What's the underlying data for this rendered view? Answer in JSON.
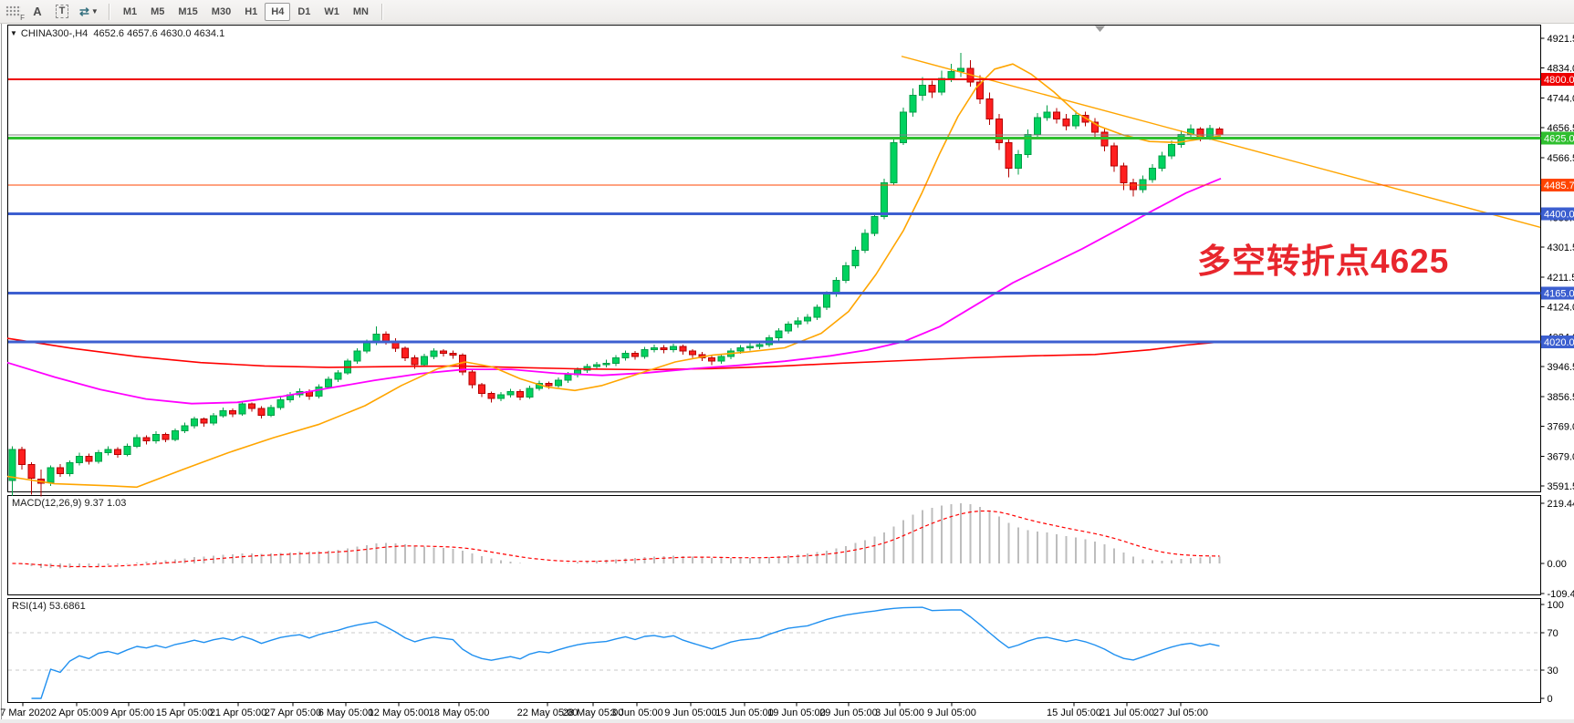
{
  "toolbar": {
    "icons": {
      "f_label": "F",
      "text_label": "A",
      "text_box": "T",
      "arrows": "⇄",
      "caret": "▼",
      "symbol_marker": "▼"
    },
    "timeframes": [
      "M1",
      "M5",
      "M15",
      "M30",
      "H1",
      "H4",
      "D1",
      "W1",
      "MN"
    ],
    "active_timeframe": "H4"
  },
  "header": {
    "symbol": "CHINA300-,H4",
    "open": "4652.6",
    "high": "4657.6",
    "low": "4630.0",
    "close": "4634.1"
  },
  "macd_panel": {
    "label": "MACD(12,26,9)",
    "values_text": "9.37 1.03"
  },
  "rsi_panel": {
    "label": "RSI(14)",
    "value_text": "53.6861"
  },
  "annotation": {
    "text": "多空转折点4625",
    "color": "#e8262d"
  },
  "chart_data": {
    "type": "candlestick",
    "title": "CHINA300-,H4",
    "grid": "off",
    "price_axis": {
      "range": [
        3591.5,
        4921.5
      ],
      "ticks": [
        "4921.5",
        "4834.0",
        "4744.0",
        "4656.5",
        "4566.5",
        "4479.0",
        "4389.0",
        "4301.5",
        "4211.5",
        "4124.0",
        "4034.0",
        "3946.5",
        "3856.5",
        "3769.0",
        "3679.0",
        "3591.5"
      ]
    },
    "badges": [
      {
        "text": "4800.0",
        "price": 4800.0,
        "color": "#ee0000"
      },
      {
        "text": "4625.0",
        "price": 4625.0,
        "color": "#2fbf2f"
      },
      {
        "text": "4485.7",
        "price": 4485.7,
        "color": "#ff4500"
      },
      {
        "text": "4400.0",
        "price": 4400.0,
        "color": "#3c5fd0"
      },
      {
        "text": "4165.0",
        "price": 4165.0,
        "color": "#3c5fd0"
      },
      {
        "text": "4020.0",
        "price": 4020.0,
        "color": "#3c5fd0"
      }
    ],
    "horizontal_lines": [
      {
        "price": 4800.0,
        "color": "#ee0000",
        "width": 2
      },
      {
        "price": 4634.1,
        "color": "#808080",
        "width": 1
      },
      {
        "price": 4625.0,
        "color": "#2fbf2f",
        "width": 3
      },
      {
        "price": 4485.7,
        "color": "#ff4500",
        "width": 1
      },
      {
        "price": 4400.0,
        "color": "#3c5fd0",
        "width": 3
      },
      {
        "price": 4165.0,
        "color": "#3c5fd0",
        "width": 3
      },
      {
        "price": 4020.0,
        "color": "#3c5fd0",
        "width": 3
      }
    ],
    "trendline": {
      "color": "#ffa500",
      "points": [
        [
          988,
          4868
        ],
        [
          1688,
          4360
        ]
      ]
    },
    "moving_averages": [
      {
        "name": "ma-slow-red",
        "color": "#ff0000",
        "width": 1.6,
        "points": [
          [
            8,
            4030
          ],
          [
            80,
            4000
          ],
          [
            150,
            3976
          ],
          [
            220,
            3958
          ],
          [
            290,
            3948
          ],
          [
            360,
            3944
          ],
          [
            430,
            3946
          ],
          [
            500,
            3948
          ],
          [
            570,
            3943
          ],
          [
            640,
            3939
          ],
          [
            710,
            3937
          ],
          [
            780,
            3940
          ],
          [
            850,
            3947
          ],
          [
            920,
            3956
          ],
          [
            990,
            3964
          ],
          [
            1060,
            3972
          ],
          [
            1130,
            3978
          ],
          [
            1200,
            3982
          ],
          [
            1260,
            3996
          ],
          [
            1300,
            4010
          ],
          [
            1340,
            4020
          ]
        ]
      },
      {
        "name": "ma-medium-magenta",
        "color": "#ff00ff",
        "width": 1.8,
        "points": [
          [
            8,
            3958
          ],
          [
            60,
            3915
          ],
          [
            110,
            3878
          ],
          [
            160,
            3850
          ],
          [
            210,
            3836
          ],
          [
            260,
            3840
          ],
          [
            310,
            3858
          ],
          [
            360,
            3882
          ],
          [
            410,
            3905
          ],
          [
            460,
            3925
          ],
          [
            510,
            3938
          ],
          [
            560,
            3938
          ],
          [
            610,
            3926
          ],
          [
            660,
            3920
          ],
          [
            710,
            3928
          ],
          [
            760,
            3940
          ],
          [
            810,
            3950
          ],
          [
            860,
            3962
          ],
          [
            910,
            3978
          ],
          [
            950,
            3995
          ],
          [
            990,
            4020
          ],
          [
            1030,
            4065
          ],
          [
            1070,
            4130
          ],
          [
            1110,
            4195
          ],
          [
            1150,
            4248
          ],
          [
            1186,
            4296
          ],
          [
            1230,
            4360
          ],
          [
            1265,
            4412
          ],
          [
            1300,
            4462
          ],
          [
            1338,
            4505
          ]
        ]
      },
      {
        "name": "ma-fast-orange",
        "color": "#ffa500",
        "width": 1.6,
        "points": [
          [
            8,
            3620
          ],
          [
            60,
            3598
          ],
          [
            120,
            3592
          ],
          [
            150,
            3588
          ],
          [
            200,
            3640
          ],
          [
            250,
            3690
          ],
          [
            300,
            3735
          ],
          [
            350,
            3775
          ],
          [
            400,
            3830
          ],
          [
            440,
            3890
          ],
          [
            480,
            3940
          ],
          [
            510,
            3960
          ],
          [
            540,
            3945
          ],
          [
            570,
            3910
          ],
          [
            600,
            3885
          ],
          [
            630,
            3875
          ],
          [
            660,
            3890
          ],
          [
            700,
            3925
          ],
          [
            740,
            3960
          ],
          [
            780,
            3980
          ],
          [
            820,
            3990
          ],
          [
            860,
            4002
          ],
          [
            900,
            4045
          ],
          [
            930,
            4110
          ],
          [
            960,
            4220
          ],
          [
            990,
            4350
          ],
          [
            1010,
            4460
          ],
          [
            1030,
            4580
          ],
          [
            1050,
            4690
          ],
          [
            1070,
            4775
          ],
          [
            1090,
            4830
          ],
          [
            1110,
            4845
          ],
          [
            1130,
            4815
          ],
          [
            1155,
            4762
          ],
          [
            1180,
            4700
          ],
          [
            1205,
            4660
          ],
          [
            1230,
            4635
          ],
          [
            1260,
            4615
          ],
          [
            1290,
            4612
          ],
          [
            1315,
            4622
          ],
          [
            1338,
            4632
          ]
        ]
      }
    ],
    "candle_style": {
      "up_fill": "#00d25f",
      "up_border": "#009e46",
      "down_fill": "#ff1f1f",
      "down_border": "#b30000"
    },
    "candles": [
      [
        3608,
        3710,
        3562,
        3700
      ],
      [
        3700,
        3708,
        3640,
        3655
      ],
      [
        3655,
        3662,
        3566,
        3615
      ],
      [
        3612,
        3640,
        3560,
        3600
      ],
      [
        3602,
        3652,
        3592,
        3645
      ],
      [
        3645,
        3656,
        3618,
        3628
      ],
      [
        3628,
        3668,
        3620,
        3660
      ],
      [
        3660,
        3690,
        3652,
        3680
      ],
      [
        3680,
        3688,
        3655,
        3665
      ],
      [
        3665,
        3698,
        3658,
        3690
      ],
      [
        3690,
        3710,
        3682,
        3700
      ],
      [
        3700,
        3707,
        3676,
        3685
      ],
      [
        3685,
        3718,
        3680,
        3710
      ],
      [
        3710,
        3744,
        3704,
        3735
      ],
      [
        3735,
        3742,
        3715,
        3725
      ],
      [
        3725,
        3754,
        3718,
        3745
      ],
      [
        3745,
        3750,
        3722,
        3730
      ],
      [
        3730,
        3762,
        3724,
        3755
      ],
      [
        3755,
        3780,
        3748,
        3770
      ],
      [
        3770,
        3798,
        3762,
        3790
      ],
      [
        3790,
        3795,
        3768,
        3778
      ],
      [
        3778,
        3808,
        3772,
        3800
      ],
      [
        3800,
        3824,
        3794,
        3815
      ],
      [
        3815,
        3822,
        3796,
        3805
      ],
      [
        3805,
        3842,
        3800,
        3835
      ],
      [
        3835,
        3840,
        3812,
        3822
      ],
      [
        3822,
        3828,
        3792,
        3802
      ],
      [
        3802,
        3832,
        3796,
        3825
      ],
      [
        3825,
        3856,
        3818,
        3848
      ],
      [
        3848,
        3870,
        3840,
        3862
      ],
      [
        3862,
        3882,
        3854,
        3872
      ],
      [
        3872,
        3878,
        3848,
        3858
      ],
      [
        3858,
        3894,
        3852,
        3886
      ],
      [
        3886,
        3916,
        3880,
        3908
      ],
      [
        3908,
        3936,
        3900,
        3928
      ],
      [
        3928,
        3970,
        3922,
        3962
      ],
      [
        3962,
        4000,
        3954,
        3992
      ],
      [
        3992,
        4026,
        3986,
        4018
      ],
      [
        4018,
        4066,
        4010,
        4042
      ],
      [
        4042,
        4050,
        4012,
        4022
      ],
      [
        4022,
        4030,
        3990,
        4000
      ],
      [
        4000,
        4006,
        3962,
        3972
      ],
      [
        3972,
        3980,
        3940,
        3952
      ],
      [
        3952,
        3984,
        3946,
        3976
      ],
      [
        3976,
        4000,
        3968,
        3992
      ],
      [
        3992,
        3998,
        3976,
        3986
      ],
      [
        3986,
        3994,
        3970,
        3980
      ],
      [
        3980,
        3986,
        3920,
        3930
      ],
      [
        3930,
        3936,
        3882,
        3892
      ],
      [
        3892,
        3898,
        3856,
        3866
      ],
      [
        3866,
        3872,
        3840,
        3852
      ],
      [
        3852,
        3870,
        3844,
        3862
      ],
      [
        3862,
        3880,
        3854,
        3872
      ],
      [
        3872,
        3878,
        3846,
        3856
      ],
      [
        3856,
        3890,
        3850,
        3882
      ],
      [
        3882,
        3904,
        3874,
        3896
      ],
      [
        3896,
        3902,
        3880,
        3890
      ],
      [
        3890,
        3914,
        3884,
        3906
      ],
      [
        3906,
        3930,
        3898,
        3922
      ],
      [
        3922,
        3944,
        3914,
        3936
      ],
      [
        3936,
        3954,
        3928,
        3946
      ],
      [
        3946,
        3960,
        3938,
        3952
      ],
      [
        3952,
        3966,
        3944,
        3956
      ],
      [
        3956,
        3980,
        3948,
        3972
      ],
      [
        3972,
        3994,
        3964,
        3986
      ],
      [
        3986,
        3992,
        3966,
        3976
      ],
      [
        3976,
        4004,
        3970,
        3996
      ],
      [
        3996,
        4012,
        3988,
        4002
      ],
      [
        4002,
        4010,
        3986,
        3996
      ],
      [
        3996,
        4014,
        3988,
        4006
      ],
      [
        4006,
        4012,
        3982,
        3992
      ],
      [
        3992,
        3998,
        3972,
        3982
      ],
      [
        3982,
        3990,
        3962,
        3972
      ],
      [
        3972,
        3980,
        3950,
        3962
      ],
      [
        3962,
        3984,
        3954,
        3976
      ],
      [
        3976,
        4000,
        3968,
        3992
      ],
      [
        3992,
        4010,
        3984,
        4002
      ],
      [
        4002,
        4016,
        3994,
        4006
      ],
      [
        4006,
        4022,
        3998,
        4012
      ],
      [
        4012,
        4040,
        4004,
        4032
      ],
      [
        4032,
        4060,
        4024,
        4052
      ],
      [
        4052,
        4080,
        4044,
        4072
      ],
      [
        4072,
        4092,
        4062,
        4082
      ],
      [
        4082,
        4102,
        4072,
        4092
      ],
      [
        4092,
        4130,
        4084,
        4122
      ],
      [
        4122,
        4170,
        4114,
        4162
      ],
      [
        4162,
        4212,
        4154,
        4202
      ],
      [
        4202,
        4256,
        4194,
        4246
      ],
      [
        4246,
        4302,
        4238,
        4292
      ],
      [
        4292,
        4354,
        4284,
        4342
      ],
      [
        4342,
        4404,
        4334,
        4392
      ],
      [
        4392,
        4504,
        4384,
        4492
      ],
      [
        4492,
        4626,
        4484,
        4612
      ],
      [
        4612,
        4716,
        4604,
        4702
      ],
      [
        4702,
        4772,
        4688,
        4752
      ],
      [
        4752,
        4806,
        4736,
        4782
      ],
      [
        4782,
        4796,
        4744,
        4762
      ],
      [
        4762,
        4826,
        4752,
        4802
      ],
      [
        4802,
        4846,
        4792,
        4822
      ],
      [
        4822,
        4878,
        4806,
        4832
      ],
      [
        4832,
        4856,
        4778,
        4792
      ],
      [
        4792,
        4812,
        4726,
        4742
      ],
      [
        4742,
        4760,
        4664,
        4682
      ],
      [
        4682,
        4696,
        4590,
        4612
      ],
      [
        4612,
        4626,
        4508,
        4536
      ],
      [
        4536,
        4590,
        4516,
        4576
      ],
      [
        4576,
        4650,
        4566,
        4636
      ],
      [
        4636,
        4700,
        4628,
        4686
      ],
      [
        4686,
        4722,
        4676,
        4702
      ],
      [
        4702,
        4714,
        4668,
        4682
      ],
      [
        4682,
        4696,
        4648,
        4662
      ],
      [
        4662,
        4706,
        4652,
        4692
      ],
      [
        4692,
        4704,
        4660,
        4672
      ],
      [
        4672,
        4684,
        4628,
        4642
      ],
      [
        4642,
        4652,
        4586,
        4602
      ],
      [
        4602,
        4612,
        4524,
        4542
      ],
      [
        4542,
        4552,
        4470,
        4492
      ],
      [
        4492,
        4504,
        4452,
        4472
      ],
      [
        4472,
        4514,
        4462,
        4502
      ],
      [
        4502,
        4548,
        4492,
        4536
      ],
      [
        4536,
        4584,
        4526,
        4572
      ],
      [
        4572,
        4618,
        4562,
        4606
      ],
      [
        4606,
        4648,
        4596,
        4636
      ],
      [
        4636,
        4666,
        4626,
        4652
      ],
      [
        4652,
        4658,
        4616,
        4628
      ],
      [
        4628,
        4664,
        4620,
        4653
      ],
      [
        4652.6,
        4657.6,
        4630.0,
        4634.1
      ]
    ],
    "macd": {
      "fast": 12,
      "slow": 26,
      "signal": 9,
      "axis_ticks": [
        "219.44",
        "0.00",
        "-109.44"
      ],
      "histogram_color": "#bdbdbd",
      "signal_color": "#ff0000"
    },
    "rsi": {
      "period": 14,
      "axis_ticks": [
        "100",
        "70",
        "30",
        "0"
      ],
      "levels": [
        70,
        30
      ],
      "line_color": "#2090f0",
      "level_color": "#c8c8c8"
    },
    "x_axis": {
      "labels": [
        [
          "27 Mar 2020",
          25
        ],
        [
          "2 Apr 05:00",
          84
        ],
        [
          "9 Apr 05:00",
          141
        ],
        [
          "15 Apr 05:00",
          202
        ],
        [
          "21 Apr 05:00",
          261
        ],
        [
          "27 Apr 05:00",
          321
        ],
        [
          "6 May 05:00",
          379
        ],
        [
          "12 May 05:00",
          437
        ],
        [
          "18 May 05:00",
          503
        ],
        [
          "22 May 05:00",
          600
        ],
        [
          "28 May 05:00",
          650
        ],
        [
          "3 Jun 05:00",
          698
        ],
        [
          "9 Jun 05:00",
          757
        ],
        [
          "15 Jun 05:00",
          816
        ],
        [
          "19 Jun 05:00",
          873
        ],
        [
          "29 Jun 05:00",
          930
        ],
        [
          "3 Jul 05:00",
          986
        ],
        [
          "9 Jul 05:00",
          1043
        ],
        [
          "15 Jul 05:00",
          1177
        ],
        [
          "21 Jul 05:00",
          1235
        ],
        [
          "27 Jul 05:00",
          1294
        ]
      ]
    }
  }
}
